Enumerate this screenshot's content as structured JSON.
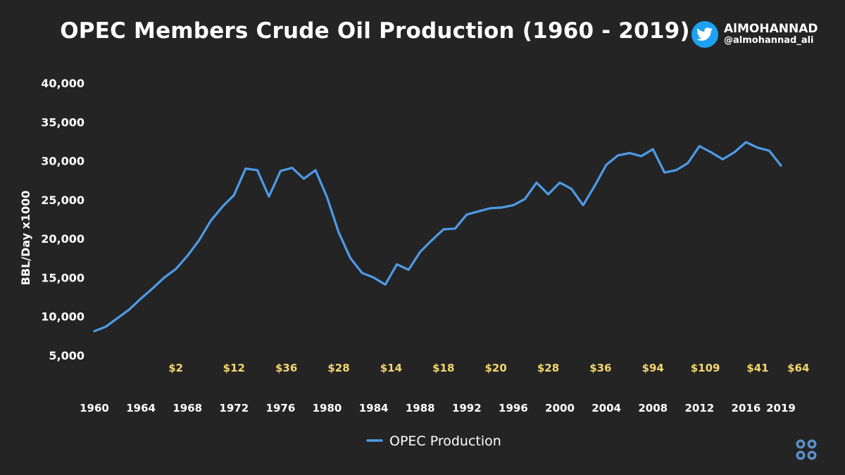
{
  "title": "OPEC Members Crude Oil Production (1960 - 2019)",
  "brand": {
    "name": "AlMOHANNAD",
    "handle": "@almohannad_ali",
    "icon": "twitter-bird-icon"
  },
  "footer_logo": "opec-logo-icon",
  "colors": {
    "background": "#242424",
    "line": "#4d9be8",
    "price_label": "#f5d76e",
    "text": "#ffffff"
  },
  "chart_data": {
    "type": "line",
    "title": "OPEC Members Crude Oil Production (1960 - 2019)",
    "ylabel": "BBL/Day x1000",
    "xlabel": "",
    "ylim": [
      5000,
      40000
    ],
    "yticks": [
      5000,
      10000,
      15000,
      20000,
      25000,
      30000,
      35000,
      40000
    ],
    "ytick_labels": [
      "5,000",
      "10,000",
      "15,000",
      "20,000",
      "25,000",
      "30,000",
      "35,000",
      "40,000"
    ],
    "xlim": [
      1960,
      2019
    ],
    "xticks": [
      1960,
      1964,
      1968,
      1972,
      1976,
      1980,
      1984,
      1988,
      1992,
      1996,
      2000,
      2004,
      2008,
      2012,
      2016,
      2019
    ],
    "grid": false,
    "legend": {
      "position": "bottom-center",
      "entries": [
        "OPEC Production"
      ]
    },
    "series": [
      {
        "name": "OPEC Production",
        "x": [
          1960,
          1961,
          1962,
          1963,
          1964,
          1965,
          1966,
          1967,
          1968,
          1969,
          1970,
          1971,
          1972,
          1973,
          1974,
          1975,
          1976,
          1977,
          1978,
          1979,
          1980,
          1981,
          1982,
          1983,
          1984,
          1985,
          1986,
          1987,
          1988,
          1989,
          1990,
          1991,
          1992,
          1993,
          1994,
          1995,
          1996,
          1997,
          1998,
          1999,
          2000,
          2001,
          2002,
          2003,
          2004,
          2005,
          2006,
          2007,
          2008,
          2009,
          2010,
          2011,
          2012,
          2013,
          2014,
          2015,
          2016,
          2017,
          2018,
          2019
        ],
        "values": [
          8100,
          8700,
          9800,
          10900,
          12300,
          13600,
          15000,
          16100,
          17800,
          19800,
          22300,
          24100,
          25600,
          29000,
          28800,
          25400,
          28700,
          29100,
          27700,
          28800,
          25300,
          20800,
          17500,
          15600,
          15000,
          14100,
          16700,
          16000,
          18300,
          19800,
          21200,
          21300,
          23100,
          23500,
          23900,
          24000,
          24300,
          25100,
          27200,
          25700,
          27200,
          26400,
          24300,
          26800,
          29500,
          30700,
          31000,
          30600,
          31500,
          28500,
          28800,
          29700,
          31900,
          31100,
          30200,
          31100,
          32400,
          31700,
          31300,
          29400
        ]
      }
    ],
    "annotations": [
      {
        "x": 1967,
        "text": "$2"
      },
      {
        "x": 1972,
        "text": "$12"
      },
      {
        "x": 1976.5,
        "text": "$36"
      },
      {
        "x": 1981,
        "text": "$28"
      },
      {
        "x": 1985.5,
        "text": "$14"
      },
      {
        "x": 1990,
        "text": "$18"
      },
      {
        "x": 1994.5,
        "text": "$20"
      },
      {
        "x": 1999,
        "text": "$28"
      },
      {
        "x": 2003.5,
        "text": "$36"
      },
      {
        "x": 2008,
        "text": "$94"
      },
      {
        "x": 2012.5,
        "text": "$109"
      },
      {
        "x": 2017,
        "text": "$41"
      },
      {
        "x": 2020.5,
        "text": "$64"
      }
    ]
  }
}
